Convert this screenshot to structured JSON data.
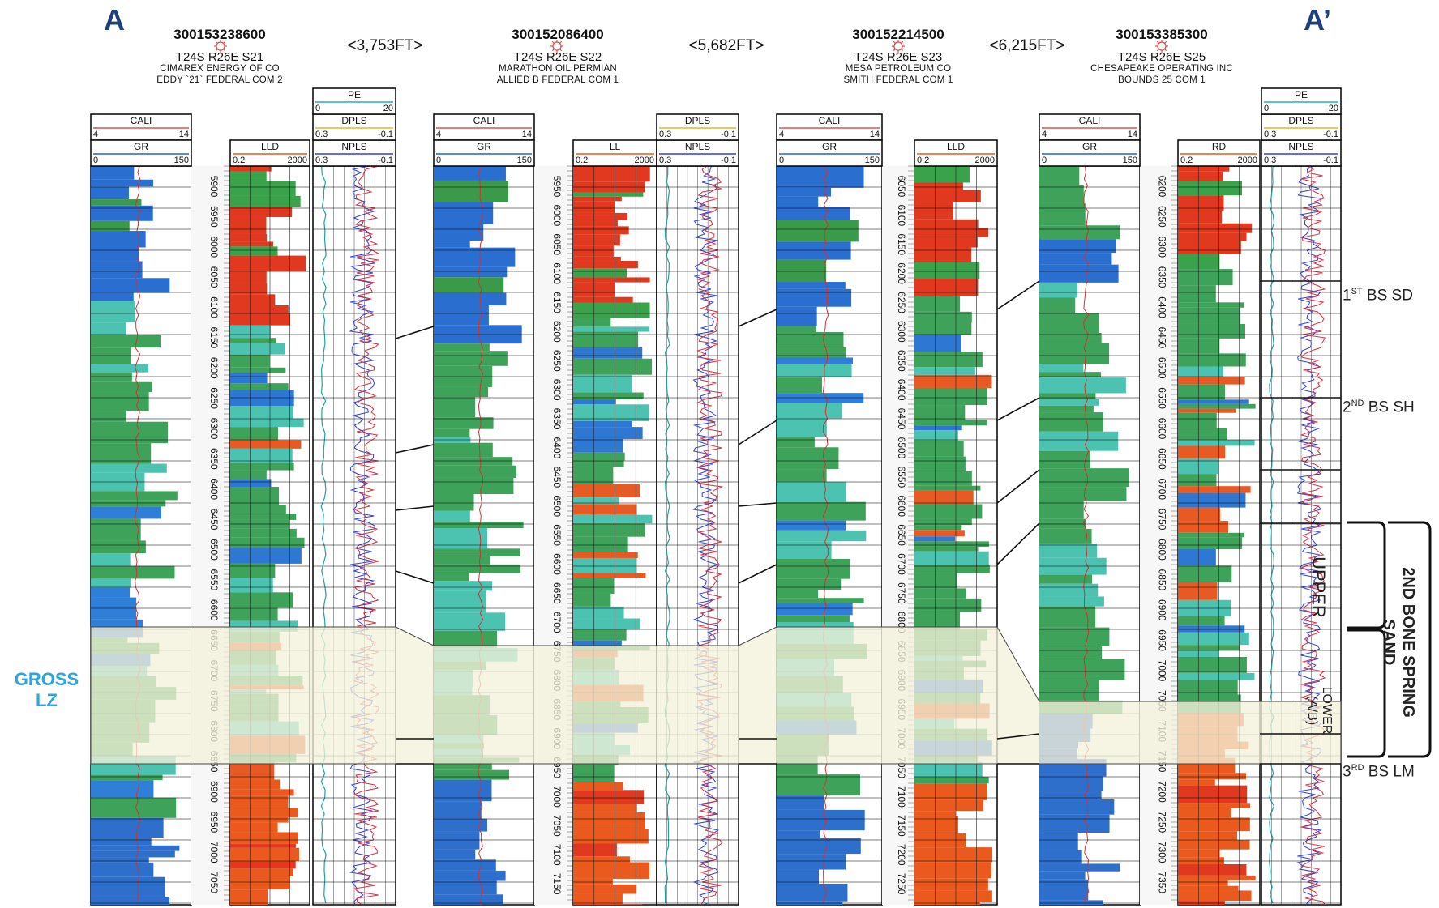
{
  "section": {
    "left_label": "A",
    "right_label": "A’"
  },
  "wells": [
    {
      "api": "300153238600",
      "location": "T24S R26E S21",
      "operator": "CIMAREX ENERGY OF CO",
      "lease": "EDDY `21` FEDERAL COM 2",
      "resistivity_label": "LLD",
      "depth_ticks": [
        "5900",
        "5950",
        "6000",
        "6050",
        "6100",
        "6150",
        "6200",
        "6250",
        "6300",
        "6350",
        "6400",
        "6450",
        "6500",
        "6550",
        "6600",
        "6650",
        "6700",
        "6750",
        "6800",
        "6850",
        "6900",
        "6950",
        "7000",
        "7050"
      ],
      "top_pe": true,
      "top_dpls": false
    },
    {
      "api": "300152086400",
      "location": "T24S R26E S22",
      "operator": "MARATHON OIL PERMIAN",
      "lease": "ALLIED B FEDERAL COM 1",
      "resistivity_label": "LL",
      "depth_ticks": [
        "5950",
        "6000",
        "6050",
        "6100",
        "6150",
        "6200",
        "6250",
        "6300",
        "6350",
        "6400",
        "6450",
        "6500",
        "6550",
        "6600",
        "6650",
        "6700",
        "6750",
        "6800",
        "6850",
        "6900",
        "6950",
        "7000",
        "7050",
        "7100",
        "7150"
      ],
      "top_pe": false,
      "top_dpls": true
    },
    {
      "api": "300152214500",
      "location": "T24S R26E S23",
      "operator": "MESA PETROLEUM CO",
      "lease": "SMITH FEDERAL COM 1",
      "resistivity_label": "LLD",
      "depth_ticks": [
        "6050",
        "6100",
        "6150",
        "6200",
        "6250",
        "6300",
        "6350",
        "6400",
        "6450",
        "6500",
        "6550",
        "6600",
        "6650",
        "6700",
        "6750",
        "6800",
        "6850",
        "6900",
        "6950",
        "7000",
        "7050",
        "7100",
        "7150",
        "7200",
        "7250"
      ],
      "top_pe": false,
      "top_dpls": false
    },
    {
      "api": "300153385300",
      "location": "T24S R26E S25",
      "operator": "CHESAPEAKE OPERATING INC",
      "lease": "BOUNDS 25 COM 1",
      "resistivity_label": "RD",
      "depth_ticks": [
        "6200",
        "6250",
        "6300",
        "6350",
        "6400",
        "6450",
        "6500",
        "6550",
        "6600",
        "6650",
        "6700",
        "6750",
        "6800",
        "6850",
        "6900",
        "6950",
        "7000",
        "7050",
        "7100",
        "7150",
        "7200",
        "7250",
        "7300",
        "7350"
      ],
      "top_pe": true,
      "top_dpls": false
    }
  ],
  "distances": [
    "<3,753FT>",
    "<5,682FT>",
    "<6,215FT>"
  ],
  "tracks": {
    "cali": {
      "label": "CALI",
      "min": "4",
      "max": "14"
    },
    "gr": {
      "label": "GR",
      "min": "0",
      "max": "150"
    },
    "res": {
      "min": "0.2",
      "max": "2000"
    },
    "pe": {
      "label": "PE",
      "min": "0",
      "max": "20"
    },
    "dpls": {
      "label": "DPLS",
      "min": "0.3",
      "max": "-0.1"
    },
    "npls": {
      "label": "NPLS",
      "min": "0.3",
      "max": "-0.1"
    }
  },
  "formations": {
    "bs1_sd": {
      "prefix": "1",
      "sup": "ST",
      "suffix": " BS SD"
    },
    "bs2_sh": {
      "prefix": "2",
      "sup": "ND",
      "suffix": " BS SH"
    },
    "bs3_lm": {
      "prefix": "3",
      "sup": "RD",
      "suffix": " BS LM"
    }
  },
  "zones": {
    "gross_line1": "GROSS",
    "gross_line2": "LZ",
    "upper": "UPPER",
    "lower_line1": "LOWER",
    "lower_line2": "(A/B)",
    "bone_line1": "2ND BONE SPRING",
    "bone_line2": "SAND"
  },
  "colors": {
    "letter": "#1f3f7a",
    "gross": "#2aa6e0",
    "band": "#f4f1da",
    "well_symbol": "#e0524a"
  }
}
